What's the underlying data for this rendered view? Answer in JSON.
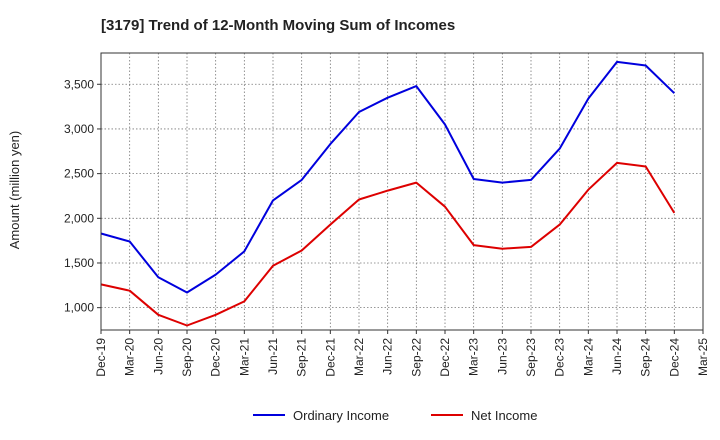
{
  "chart_data": {
    "type": "line",
    "title": "[3179]  Trend of 12-Month Moving Sum of Incomes",
    "xlabel": "",
    "ylabel": "Amount (million yen)",
    "ylim": [
      750,
      3850
    ],
    "yticks": [
      1000,
      1500,
      2000,
      2500,
      3000,
      3500
    ],
    "ytick_labels": [
      "1,000",
      "1,500",
      "2,000",
      "2,500",
      "3,000",
      "3,500"
    ],
    "categories": [
      "Dec-19",
      "Mar-20",
      "Jun-20",
      "Sep-20",
      "Dec-20",
      "Mar-21",
      "Jun-21",
      "Sep-21",
      "Dec-21",
      "Mar-22",
      "Jun-22",
      "Sep-22",
      "Dec-22",
      "Mar-23",
      "Jun-23",
      "Sep-23",
      "Dec-23",
      "Mar-24",
      "Jun-24",
      "Sep-24",
      "Dec-24",
      "Mar-25"
    ],
    "grid": true,
    "legend_position": "bottom",
    "series": [
      {
        "name": "Ordinary Income",
        "color": "#0000dd",
        "values": [
          1830,
          1740,
          1340,
          1170,
          1370,
          1630,
          2200,
          2430,
          2830,
          3190,
          3350,
          3480,
          3050,
          2440,
          2400,
          2430,
          2780,
          3340,
          3750,
          3710,
          3400,
          null
        ]
      },
      {
        "name": "Net Income",
        "color": "#dd0000",
        "values": [
          1260,
          1190,
          920,
          800,
          920,
          1070,
          1470,
          1640,
          1930,
          2210,
          2310,
          2400,
          2130,
          1700,
          1660,
          1680,
          1930,
          2320,
          2620,
          2580,
          2060,
          null
        ]
      }
    ]
  }
}
